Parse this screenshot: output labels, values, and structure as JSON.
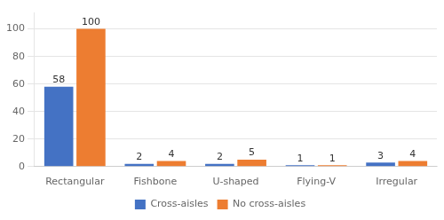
{
  "chart_data": {
    "type": "bar",
    "categories": [
      "Rectangular",
      "Fishbone",
      "U-shaped",
      "Flying-V",
      "Irregular"
    ],
    "series": [
      {
        "name": "Cross-aisles",
        "color": "#4472C4",
        "values": [
          58,
          2,
          2,
          1,
          3
        ]
      },
      {
        "name": "No cross-aisles",
        "color": "#ED7D31",
        "values": [
          100,
          4,
          5,
          1,
          4
        ]
      }
    ],
    "ylim": [
      0,
      112
    ],
    "yticks": [
      0,
      20,
      40,
      60,
      80,
      100
    ],
    "grid": true,
    "legend": "bottom",
    "data_labels": true
  }
}
